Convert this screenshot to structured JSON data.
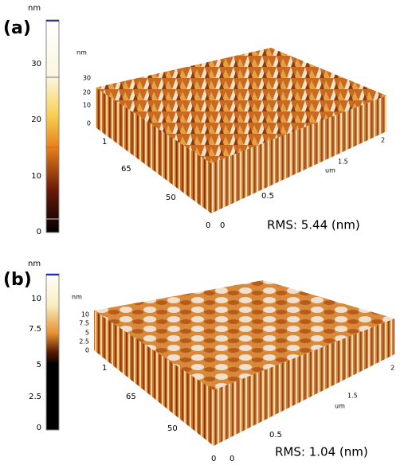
{
  "panels": [
    {
      "label": "(a)",
      "colorbar": {
        "unit": "nm",
        "ticks": [
          "30",
          "20",
          "10",
          "0"
        ]
      },
      "z_axis": {
        "unit": "nm",
        "ticks": [
          "30",
          "20",
          "10",
          "0"
        ]
      },
      "left_axis": [
        "0",
        "50",
        "65",
        "1"
      ],
      "right_axis": [
        "0",
        "0.5",
        "um",
        "1.5",
        "2"
      ],
      "rms": "RMS: 5.44 (nm)"
    },
    {
      "label": "(b)",
      "colorbar": {
        "unit": "nm",
        "ticks": [
          "10",
          "7.5",
          "5",
          "2.5",
          "0"
        ]
      },
      "z_axis": {
        "unit": "nm",
        "ticks": [
          "10",
          "7.5",
          "5",
          "2.5",
          "0"
        ]
      },
      "left_axis": [
        "0",
        "50",
        "65",
        "1"
      ],
      "right_axis": [
        "0",
        "0.5",
        "um",
        "1.5",
        "2"
      ],
      "rms": "RMS: 1.04 (nm)"
    }
  ]
}
